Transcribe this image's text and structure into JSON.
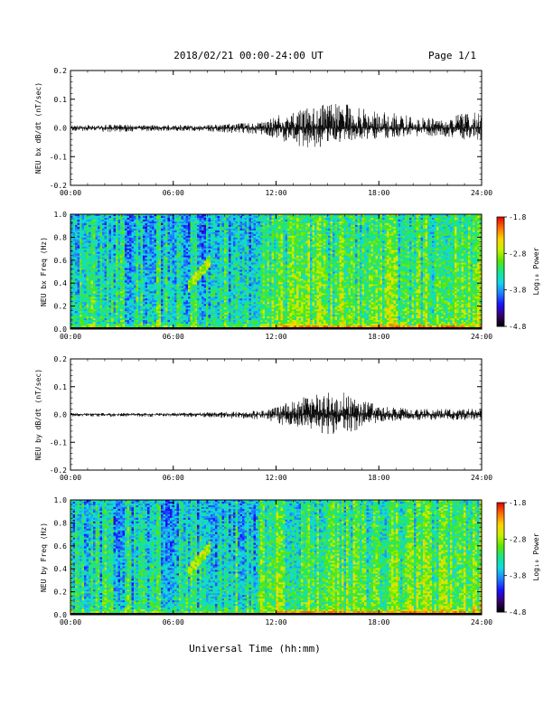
{
  "header": {
    "title": "2018/02/21  00:00-24:00 UT",
    "page": "Page 1/1"
  },
  "xlabel": "Universal Time (hh:mm)",
  "colors": {
    "trace": "#000000",
    "colormap": [
      "#000000",
      "#3a0070",
      "#1a10ff",
      "#1f7dff",
      "#14d7e6",
      "#14e68c",
      "#5ae600",
      "#c8f000",
      "#ffd200",
      "#ff6e00",
      "#e60000"
    ]
  },
  "chart_data": [
    {
      "type": "line",
      "ylabel": "NEU bx dB/dt (nT/sec)",
      "xlim": [
        0,
        24
      ],
      "ylim": [
        -0.2,
        0.2
      ],
      "x_ticks": [
        "00:00",
        "06:00",
        "12:00",
        "18:00",
        "24:00"
      ],
      "y_ticks": [
        "0.2",
        "0.1",
        "0.0",
        "-0.1",
        "-0.2"
      ],
      "envelope": {
        "hours": [
          0,
          2,
          4,
          6,
          8,
          10,
          11.5,
          12,
          13,
          14,
          15,
          16,
          17,
          18,
          19,
          20,
          21,
          22,
          23,
          24
        ],
        "upper": [
          0.008,
          0.012,
          0.01,
          0.01,
          0.012,
          0.016,
          0.02,
          0.05,
          0.06,
          0.08,
          0.08,
          0.09,
          0.07,
          0.06,
          0.05,
          0.04,
          0.035,
          0.03,
          0.06,
          0.05
        ],
        "lower": [
          -0.01,
          -0.015,
          -0.012,
          -0.012,
          -0.012,
          -0.02,
          -0.025,
          -0.04,
          -0.06,
          -0.08,
          -0.06,
          -0.05,
          -0.04,
          -0.04,
          -0.035,
          -0.03,
          -0.03,
          -0.03,
          -0.04,
          -0.05
        ]
      }
    },
    {
      "type": "heatmap",
      "ylabel": "NEU bx Freq (Hz)",
      "xlim": [
        0,
        24
      ],
      "ylim": [
        0,
        1.0
      ],
      "x_ticks": [
        "00:00",
        "06:00",
        "12:00",
        "18:00",
        "24:00"
      ],
      "y_ticks": [
        "1.0",
        "0.8",
        "0.6",
        "0.4",
        "0.2",
        "0.0"
      ],
      "colorbar": {
        "label": "Log₁₀ Power",
        "ticks": [
          "-1.8",
          "-2.8",
          "-3.8",
          "-4.8"
        ],
        "range": [
          -4.8,
          -1.8
        ]
      },
      "features": [
        {
          "name": "power band near 0 Hz",
          "hours": [
            12,
            23
          ],
          "freq_hz": 0.02,
          "log_power": -2.0
        },
        {
          "name": "arc",
          "hours": [
            6.8,
            8.2
          ],
          "freq_hz": [
            0.35,
            0.6
          ],
          "log_power": -2.4
        }
      ]
    },
    {
      "type": "line",
      "ylabel": "NEU by dB/dt (nT/sec)",
      "xlim": [
        0,
        24
      ],
      "ylim": [
        -0.2,
        0.2
      ],
      "x_ticks": [
        "00:00",
        "06:00",
        "12:00",
        "18:00",
        "24:00"
      ],
      "y_ticks": [
        "0.2",
        "0.1",
        "0.0",
        "-0.1",
        "-0.2"
      ],
      "envelope": {
        "hours": [
          0,
          2,
          4,
          6,
          8,
          10,
          11.5,
          12,
          13,
          14,
          15,
          16,
          17,
          18,
          19,
          20,
          21,
          22,
          23,
          24
        ],
        "upper": [
          0.005,
          0.005,
          0.005,
          0.006,
          0.008,
          0.012,
          0.015,
          0.03,
          0.05,
          0.07,
          0.08,
          0.08,
          0.06,
          0.03,
          0.025,
          0.02,
          0.02,
          0.02,
          0.02,
          0.02
        ],
        "lower": [
          -0.008,
          -0.008,
          -0.008,
          -0.008,
          -0.01,
          -0.015,
          -0.02,
          -0.03,
          -0.05,
          -0.06,
          -0.07,
          -0.08,
          -0.05,
          -0.03,
          -0.025,
          -0.02,
          -0.02,
          -0.02,
          -0.02,
          -0.02
        ]
      }
    },
    {
      "type": "heatmap",
      "ylabel": "NEU by Freq (Hz)",
      "xlim": [
        0,
        24
      ],
      "ylim": [
        0,
        1.0
      ],
      "x_ticks": [
        "00:00",
        "06:00",
        "12:00",
        "18:00",
        "24:00"
      ],
      "y_ticks": [
        "1.0",
        "0.8",
        "0.6",
        "0.4",
        "0.2",
        "0.0"
      ],
      "colorbar": {
        "label": "Log₁₀ Power",
        "ticks": [
          "-1.8",
          "-2.8",
          "-3.8",
          "-4.8"
        ],
        "range": [
          -4.8,
          -1.8
        ]
      },
      "features": [
        {
          "name": "power band near 0 Hz",
          "hours": [
            12,
            23
          ],
          "freq_hz": 0.02,
          "log_power": -2.0
        },
        {
          "name": "arc",
          "hours": [
            6.8,
            8.2
          ],
          "freq_hz": [
            0.35,
            0.6
          ],
          "log_power": -2.4
        }
      ]
    }
  ]
}
